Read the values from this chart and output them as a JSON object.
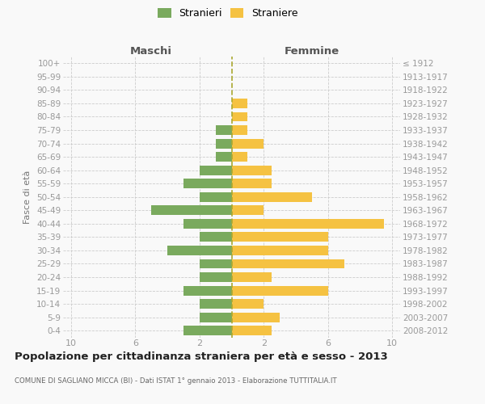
{
  "age_groups": [
    "100+",
    "95-99",
    "90-94",
    "85-89",
    "80-84",
    "75-79",
    "70-74",
    "65-69",
    "60-64",
    "55-59",
    "50-54",
    "45-49",
    "40-44",
    "35-39",
    "30-34",
    "25-29",
    "20-24",
    "15-19",
    "10-14",
    "5-9",
    "0-4"
  ],
  "birth_years": [
    "≤ 1912",
    "1913-1917",
    "1918-1922",
    "1923-1927",
    "1928-1932",
    "1933-1937",
    "1938-1942",
    "1943-1947",
    "1948-1952",
    "1953-1957",
    "1958-1962",
    "1963-1967",
    "1968-1972",
    "1973-1977",
    "1978-1982",
    "1983-1987",
    "1988-1992",
    "1993-1997",
    "1998-2002",
    "2003-2007",
    "2008-2012"
  ],
  "maschi": [
    0,
    0,
    0,
    0,
    0,
    1,
    1,
    1,
    2,
    3,
    2,
    5,
    3,
    2,
    4,
    2,
    2,
    3,
    2,
    2,
    3
  ],
  "femmine": [
    0,
    0,
    0,
    1,
    1,
    1,
    2,
    1,
    2.5,
    2.5,
    5,
    2,
    9.5,
    6,
    6,
    7,
    2.5,
    6,
    2,
    3,
    2.5
  ],
  "maschi_color": "#7aaa5e",
  "femmine_color": "#f5c242",
  "background_color": "#f9f9f9",
  "grid_color": "#cccccc",
  "title": "Popolazione per cittadinanza straniera per età e sesso - 2013",
  "subtitle": "COMUNE DI SAGLIANO MICCA (BI) - Dati ISTAT 1° gennaio 2013 - Elaborazione TUTTITALIA.IT",
  "header_left": "Maschi",
  "header_right": "Femmine",
  "ylabel_left": "Fasce di età",
  "legend_stranieri": "Stranieri",
  "legend_straniere": "Straniere",
  "xlim": 10.5
}
